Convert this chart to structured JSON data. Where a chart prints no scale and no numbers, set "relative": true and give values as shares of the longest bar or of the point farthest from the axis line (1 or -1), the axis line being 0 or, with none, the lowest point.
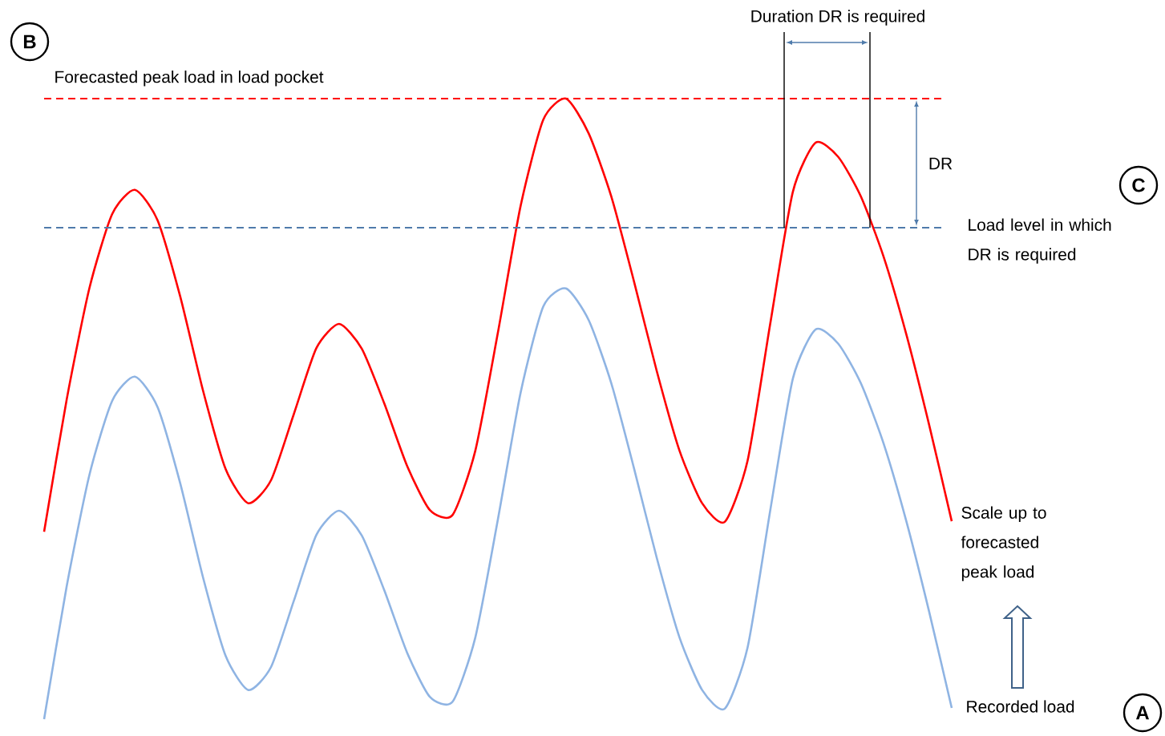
{
  "chart_data": {
    "type": "line",
    "relative": true,
    "marker": "none",
    "categories": [
      null,
      null,
      null,
      null,
      null,
      null,
      null,
      null,
      null,
      null,
      null,
      null,
      null,
      null,
      null,
      null,
      null,
      null,
      null,
      null,
      null,
      null,
      null,
      null,
      null,
      null,
      null,
      null,
      null,
      null,
      null,
      null,
      null,
      null,
      null,
      null,
      null,
      null,
      null,
      null,
      null
    ],
    "series": [
      {
        "color": "#ff0000",
        "values": [
          0.302,
          0.516,
          0.695,
          0.814,
          0.853,
          0.804,
          0.681,
          0.53,
          0.403,
          0.348,
          0.385,
          0.491,
          0.598,
          0.637,
          0.597,
          0.508,
          0.408,
          0.337,
          0.329,
          0.432,
          0.623,
          0.827,
          0.966,
          1.0,
          0.944,
          0.842,
          0.705,
          0.561,
          0.433,
          0.348,
          0.318,
          0.416,
          0.637,
          0.85,
          0.929,
          0.906,
          0.842,
          0.745,
          0.62,
          0.475,
          0.319
        ]
      },
      {
        "name": "Recorded load",
        "color": "#8fb4e3",
        "values": [
          0.0,
          0.215,
          0.394,
          0.513,
          0.552,
          0.503,
          0.38,
          0.229,
          0.102,
          0.047,
          0.084,
          0.19,
          0.297,
          0.336,
          0.296,
          0.207,
          0.107,
          0.036,
          0.028,
          0.131,
          0.322,
          0.526,
          0.665,
          0.694,
          0.643,
          0.541,
          0.404,
          0.26,
          0.132,
          0.047,
          0.017,
          0.115,
          0.336,
          0.549,
          0.628,
          0.605,
          0.541,
          0.444,
          0.319,
          0.174,
          0.018
        ]
      }
    ],
    "ref_lines": [
      {
        "axis": "y",
        "value": 1.0,
        "label": "Forecasted peak load in load pocket",
        "color": "#ff0000",
        "line_style": "dashed"
      },
      {
        "axis": "y",
        "value": 0.792,
        "label": "Load level in which DR is required",
        "color": "#4f7bab",
        "line_style": "dashed"
      }
    ],
    "annotations": [
      "Duration DR is required",
      "DR",
      "Scale up to forecasted peak load",
      "B",
      "C",
      "A"
    ]
  }
}
